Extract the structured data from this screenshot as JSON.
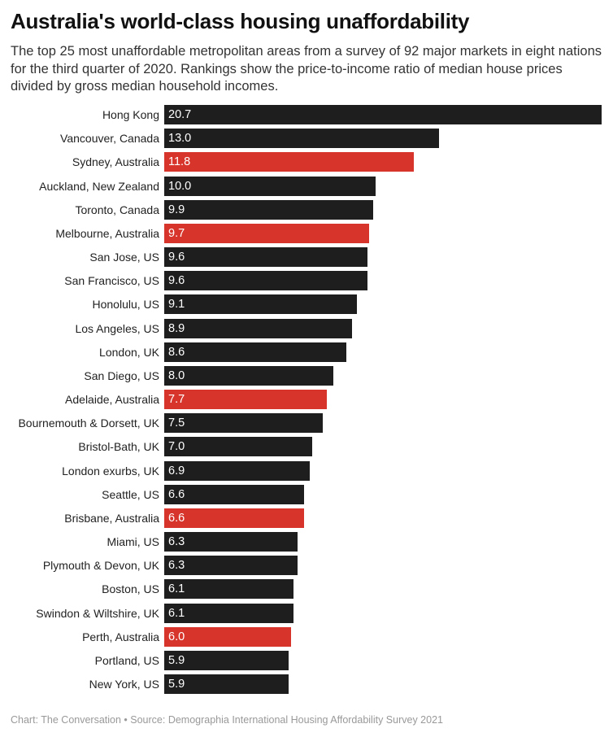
{
  "title": "Australia's world-class housing unaffordability",
  "subtitle": "The top 25 most unaffordable metropolitan areas from a survey of 92 major markets in eight nations for the third quarter of 2020. Rankings show the price-to-income ratio of median house prices divided by gross median household incomes.",
  "footer": "Chart: The Conversation • Source: Demographia International Housing Affordability Survey 2021",
  "chart_data": {
    "type": "bar",
    "orientation": "horizontal",
    "xlim": [
      0,
      20.7
    ],
    "grid": false,
    "colors": {
      "default": "#1e1e1e",
      "highlight": "#d7352b"
    },
    "categories": [
      "Hong Kong",
      "Vancouver, Canada",
      "Sydney, Australia",
      "Auckland, New Zealand",
      "Toronto, Canada",
      "Melbourne, Australia",
      "San Jose, US",
      "San Francisco, US",
      "Honolulu, US",
      "Los Angeles, US",
      "London, UK",
      "San Diego, US",
      "Adelaide, Australia",
      "Bournemouth & Dorsett, UK",
      "Bristol-Bath, UK",
      "London exurbs, UK",
      "Seattle, US",
      "Brisbane, Australia",
      "Miami, US",
      "Plymouth & Devon, UK",
      "Boston, US",
      "Swindon & Wiltshire, UK",
      "Perth, Australia",
      "Portland, US",
      "New York, US"
    ],
    "values": [
      20.7,
      13.0,
      11.8,
      10.0,
      9.9,
      9.7,
      9.6,
      9.6,
      9.1,
      8.9,
      8.6,
      8.0,
      7.7,
      7.5,
      7.0,
      6.9,
      6.6,
      6.6,
      6.3,
      6.3,
      6.1,
      6.1,
      6.0,
      5.9,
      5.9
    ],
    "labels": [
      "20.7",
      "13.0",
      "11.8",
      "10.0",
      "9.9",
      "9.7",
      "9.6",
      "9.6",
      "9.1",
      "8.9",
      "8.6",
      "8.0",
      "7.7",
      "7.5",
      "7.0",
      "6.9",
      "6.6",
      "6.6",
      "6.3",
      "6.3",
      "6.1",
      "6.1",
      "6.0",
      "5.9",
      "5.9"
    ],
    "highlight": [
      false,
      false,
      true,
      false,
      false,
      true,
      false,
      false,
      false,
      false,
      false,
      false,
      true,
      false,
      false,
      false,
      false,
      true,
      false,
      false,
      false,
      false,
      true,
      false,
      false
    ]
  }
}
